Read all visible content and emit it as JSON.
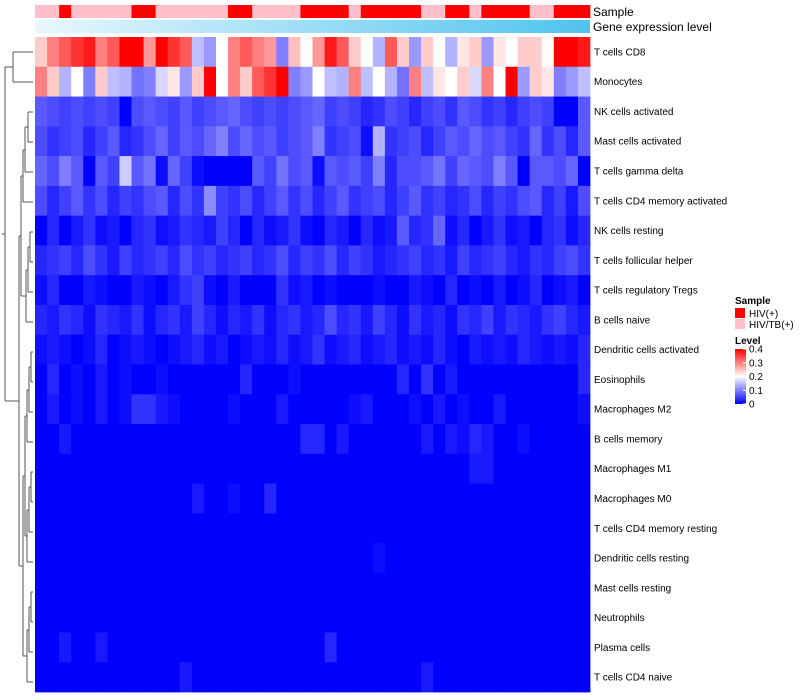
{
  "chart_data": {
    "type": "heatmap",
    "rows": [
      "T cells CD8",
      "Monocytes",
      "NK cells activated",
      "Mast cells activated",
      "T cells gamma delta",
      "T cells CD4 memory activated",
      "NK cells resting",
      "T cells follicular helper",
      "T cells regulatory  Tregs",
      "B cells naive",
      "Dendritic cells activated",
      "Eosinophils",
      "Macrophages M2",
      "B cells memory",
      "Macrophages M1",
      "Macrophages M0",
      "T cells CD4 memory resting",
      "Dendritic cells resting",
      "Mast cells resting",
      "Neutrophils",
      "Plasma cells",
      "T cells CD4 naive"
    ],
    "n_columns": 46,
    "values": [
      [
        0.24,
        0.3,
        0.33,
        0.36,
        0.38,
        0.3,
        0.33,
        0.4,
        0.4,
        0.28,
        0.4,
        0.36,
        0.33,
        0.15,
        0.12,
        0.2,
        0.3,
        0.33,
        0.3,
        0.28,
        0.1,
        0.25,
        0.2,
        0.28,
        0.38,
        0.33,
        0.24,
        0.2,
        0.14,
        0.33,
        0.24,
        0.12,
        0.24,
        0.2,
        0.14,
        0.22,
        0.24,
        0.12,
        0.22,
        0.2,
        0.24,
        0.24,
        0.2,
        0.4,
        0.4,
        0.38
      ],
      [
        0.3,
        0.24,
        0.14,
        0.2,
        0.1,
        0.24,
        0.15,
        0.14,
        0.09,
        0.1,
        0.17,
        0.22,
        0.12,
        0.24,
        0.4,
        0.2,
        0.3,
        0.24,
        0.33,
        0.36,
        0.4,
        0.1,
        0.12,
        0.2,
        0.15,
        0.14,
        0.3,
        0.15,
        0.2,
        0.14,
        0.09,
        0.3,
        0.15,
        0.22,
        0.2,
        0.24,
        0.17,
        0.3,
        0.2,
        0.4,
        0.12,
        0.24,
        0.22,
        0.1,
        0.12,
        0.15
      ],
      [
        0.07,
        0.06,
        0.05,
        0.06,
        0.05,
        0.06,
        0.05,
        0.0,
        0.06,
        0.07,
        0.06,
        0.05,
        0.07,
        0.05,
        0.06,
        0.07,
        0.08,
        0.06,
        0.05,
        0.06,
        0.05,
        0.06,
        0.07,
        0.08,
        0.05,
        0.06,
        0.05,
        0.03,
        0.04,
        0.06,
        0.05,
        0.03,
        0.05,
        0.06,
        0.04,
        0.07,
        0.06,
        0.04,
        0.05,
        0.03,
        0.05,
        0.06,
        0.05,
        0.0,
        0.0,
        0.07
      ],
      [
        0.06,
        0.04,
        0.05,
        0.06,
        0.03,
        0.05,
        0.07,
        0.03,
        0.04,
        0.06,
        0.08,
        0.05,
        0.07,
        0.06,
        0.08,
        0.1,
        0.06,
        0.08,
        0.06,
        0.07,
        0.05,
        0.06,
        0.07,
        0.1,
        0.04,
        0.05,
        0.06,
        0.01,
        0.14,
        0.04,
        0.05,
        0.06,
        0.03,
        0.05,
        0.07,
        0.06,
        0.08,
        0.06,
        0.07,
        0.05,
        0.04,
        0.08,
        0.04,
        0.06,
        0.03,
        0.07
      ],
      [
        0.08,
        0.06,
        0.1,
        0.07,
        0.0,
        0.07,
        0.05,
        0.16,
        0.07,
        0.09,
        0.01,
        0.08,
        0.05,
        0.01,
        0.0,
        0.0,
        0.0,
        0.0,
        0.07,
        0.05,
        0.09,
        0.06,
        0.07,
        0.01,
        0.07,
        0.06,
        0.07,
        0.05,
        0.1,
        0.03,
        0.06,
        0.06,
        0.07,
        0.09,
        0.05,
        0.08,
        0.07,
        0.06,
        0.1,
        0.07,
        0.0,
        0.07,
        0.07,
        0.06,
        0.08,
        0.0
      ],
      [
        0.06,
        0.03,
        0.05,
        0.07,
        0.04,
        0.06,
        0.03,
        0.05,
        0.04,
        0.06,
        0.07,
        0.03,
        0.06,
        0.04,
        0.11,
        0.05,
        0.04,
        0.06,
        0.03,
        0.05,
        0.07,
        0.04,
        0.06,
        0.03,
        0.05,
        0.07,
        0.04,
        0.05,
        0.06,
        0.03,
        0.05,
        0.07,
        0.04,
        0.05,
        0.03,
        0.04,
        0.06,
        0.03,
        0.05,
        0.04,
        0.06,
        0.07,
        0.03,
        0.05,
        0.02,
        0.06
      ],
      [
        0.0,
        0.03,
        0.0,
        0.02,
        0.04,
        0.01,
        0.02,
        0.0,
        0.03,
        0.04,
        0.01,
        0.02,
        0.04,
        0.03,
        0.02,
        0.05,
        0.03,
        0.0,
        0.03,
        0.01,
        0.02,
        0.04,
        0.01,
        0.0,
        0.03,
        0.02,
        0.0,
        0.03,
        0.01,
        0.02,
        0.07,
        0.03,
        0.04,
        0.08,
        0.01,
        0.03,
        0.0,
        0.02,
        0.04,
        0.01,
        0.02,
        0.0,
        0.03,
        0.04,
        0.01,
        0.03
      ],
      [
        0.03,
        0.04,
        0.05,
        0.03,
        0.06,
        0.04,
        0.02,
        0.05,
        0.03,
        0.04,
        0.05,
        0.03,
        0.06,
        0.04,
        0.05,
        0.03,
        0.04,
        0.05,
        0.03,
        0.04,
        0.06,
        0.03,
        0.05,
        0.04,
        0.06,
        0.03,
        0.05,
        0.04,
        0.02,
        0.03,
        0.04,
        0.05,
        0.03,
        0.04,
        0.02,
        0.05,
        0.03,
        0.04,
        0.05,
        0.03,
        0.02,
        0.04,
        0.03,
        0.05,
        0.06,
        0.04
      ],
      [
        0.01,
        0.03,
        0.0,
        0.0,
        0.02,
        0.01,
        0.0,
        0.0,
        0.02,
        0.01,
        0.0,
        0.02,
        0.04,
        0.05,
        0.01,
        0.0,
        0.02,
        0.0,
        0.0,
        0.0,
        0.04,
        0.01,
        0.02,
        0.0,
        0.01,
        0.0,
        0.0,
        0.0,
        0.01,
        0.0,
        0.0,
        0.02,
        0.01,
        0.0,
        0.03,
        0.0,
        0.01,
        0.0,
        0.02,
        0.0,
        0.01,
        0.03,
        0.0,
        0.01,
        0.02,
        0.0
      ],
      [
        0.03,
        0.02,
        0.04,
        0.03,
        0.01,
        0.04,
        0.03,
        0.02,
        0.04,
        0.01,
        0.03,
        0.04,
        0.02,
        0.05,
        0.03,
        0.01,
        0.03,
        0.02,
        0.04,
        0.01,
        0.03,
        0.04,
        0.02,
        0.03,
        0.06,
        0.03,
        0.04,
        0.02,
        0.05,
        0.03,
        0.01,
        0.04,
        0.02,
        0.03,
        0.01,
        0.04,
        0.03,
        0.05,
        0.02,
        0.04,
        0.03,
        0.02,
        0.04,
        0.05,
        0.03,
        0.02
      ],
      [
        0.01,
        0.02,
        0.01,
        0.0,
        0.01,
        0.03,
        0.0,
        0.01,
        0.02,
        0.01,
        0.0,
        0.01,
        0.02,
        0.03,
        0.01,
        0.02,
        0.0,
        0.01,
        0.02,
        0.01,
        0.03,
        0.01,
        0.02,
        0.04,
        0.01,
        0.02,
        0.03,
        0.01,
        0.02,
        0.03,
        0.01,
        0.02,
        0.01,
        0.03,
        0.01,
        0.0,
        0.02,
        0.01,
        0.02,
        0.01,
        0.03,
        0.02,
        0.01,
        0.02,
        0.01,
        0.03
      ],
      [
        0.0,
        0.03,
        0.0,
        0.01,
        0.0,
        0.02,
        0.0,
        0.01,
        0.0,
        0.0,
        0.01,
        0.0,
        0.0,
        0.0,
        0.0,
        0.0,
        0.0,
        0.03,
        0.0,
        0.0,
        0.0,
        0.01,
        0.0,
        0.0,
        0.0,
        0.0,
        0.0,
        0.0,
        0.0,
        0.0,
        0.03,
        0.0,
        0.04,
        0.0,
        0.02,
        0.0,
        0.0,
        0.0,
        0.0,
        0.0,
        0.0,
        0.0,
        0.0,
        0.0,
        0.0,
        0.03
      ],
      [
        0.0,
        0.02,
        0.0,
        0.01,
        0.0,
        0.02,
        0.0,
        0.01,
        0.04,
        0.04,
        0.02,
        0.01,
        0.0,
        0.0,
        0.0,
        0.0,
        0.01,
        0.0,
        0.0,
        0.0,
        0.02,
        0.0,
        0.0,
        0.0,
        0.0,
        0.0,
        0.01,
        0.02,
        0.0,
        0.0,
        0.0,
        0.01,
        0.0,
        0.02,
        0.0,
        0.01,
        0.0,
        0.0,
        0.02,
        0.0,
        0.0,
        0.0,
        0.0,
        0.0,
        0.0,
        0.01
      ],
      [
        0.0,
        0.0,
        0.02,
        0.0,
        0.0,
        0.0,
        0.0,
        0.0,
        0.0,
        0.0,
        0.0,
        0.0,
        0.0,
        0.0,
        0.0,
        0.0,
        0.0,
        0.0,
        0.0,
        0.0,
        0.0,
        0.0,
        0.03,
        0.03,
        0.0,
        0.02,
        0.0,
        0.0,
        0.0,
        0.0,
        0.0,
        0.0,
        0.02,
        0.0,
        0.02,
        0.01,
        0.03,
        0.02,
        0.0,
        0.0,
        0.01,
        0.0,
        0.0,
        0.0,
        0.0,
        0.0
      ],
      [
        0.0,
        0.0,
        0.0,
        0.0,
        0.0,
        0.0,
        0.0,
        0.0,
        0.0,
        0.0,
        0.0,
        0.0,
        0.0,
        0.0,
        0.0,
        0.0,
        0.0,
        0.0,
        0.0,
        0.0,
        0.0,
        0.0,
        0.0,
        0.0,
        0.0,
        0.0,
        0.0,
        0.0,
        0.0,
        0.0,
        0.0,
        0.0,
        0.0,
        0.0,
        0.0,
        0.0,
        0.02,
        0.02,
        0.0,
        0.0,
        0.0,
        0.0,
        0.0,
        0.0,
        0.0,
        0.0
      ],
      [
        0.0,
        0.0,
        0.0,
        0.0,
        0.0,
        0.0,
        0.0,
        0.0,
        0.0,
        0.0,
        0.0,
        0.0,
        0.0,
        0.02,
        0.0,
        0.0,
        0.01,
        0.0,
        0.0,
        0.03,
        0.0,
        0.0,
        0.0,
        0.0,
        0.0,
        0.0,
        0.0,
        0.0,
        0.0,
        0.0,
        0.0,
        0.0,
        0.0,
        0.0,
        0.0,
        0.0,
        0.0,
        0.0,
        0.0,
        0.0,
        0.0,
        0.0,
        0.0,
        0.0,
        0.0,
        0.0
      ],
      [
        0.0,
        0.0,
        0.0,
        0.0,
        0.0,
        0.0,
        0.0,
        0.0,
        0.0,
        0.0,
        0.0,
        0.0,
        0.0,
        0.0,
        0.0,
        0.0,
        0.0,
        0.0,
        0.0,
        0.0,
        0.0,
        0.0,
        0.0,
        0.0,
        0.0,
        0.0,
        0.0,
        0.0,
        0.0,
        0.0,
        0.0,
        0.0,
        0.0,
        0.0,
        0.0,
        0.0,
        0.0,
        0.0,
        0.0,
        0.0,
        0.0,
        0.0,
        0.0,
        0.0,
        0.0,
        0.0
      ],
      [
        0.0,
        0.0,
        0.0,
        0.0,
        0.0,
        0.0,
        0.0,
        0.0,
        0.0,
        0.0,
        0.0,
        0.0,
        0.0,
        0.0,
        0.0,
        0.0,
        0.0,
        0.0,
        0.0,
        0.0,
        0.0,
        0.0,
        0.0,
        0.0,
        0.0,
        0.0,
        0.0,
        0.0,
        0.01,
        0.0,
        0.0,
        0.0,
        0.0,
        0.0,
        0.0,
        0.0,
        0.0,
        0.0,
        0.0,
        0.0,
        0.0,
        0.0,
        0.0,
        0.0,
        0.0,
        0.0
      ],
      [
        0.0,
        0.0,
        0.0,
        0.0,
        0.0,
        0.0,
        0.0,
        0.0,
        0.0,
        0.0,
        0.0,
        0.0,
        0.0,
        0.0,
        0.0,
        0.0,
        0.0,
        0.0,
        0.0,
        0.0,
        0.0,
        0.0,
        0.0,
        0.0,
        0.0,
        0.0,
        0.0,
        0.0,
        0.0,
        0.0,
        0.0,
        0.0,
        0.0,
        0.0,
        0.0,
        0.0,
        0.0,
        0.0,
        0.0,
        0.0,
        0.0,
        0.0,
        0.0,
        0.0,
        0.0,
        0.0
      ],
      [
        0.0,
        0.0,
        0.0,
        0.0,
        0.0,
        0.0,
        0.0,
        0.0,
        0.0,
        0.0,
        0.0,
        0.0,
        0.0,
        0.0,
        0.0,
        0.0,
        0.0,
        0.0,
        0.0,
        0.0,
        0.0,
        0.0,
        0.0,
        0.0,
        0.0,
        0.0,
        0.0,
        0.0,
        0.0,
        0.0,
        0.0,
        0.0,
        0.0,
        0.0,
        0.0,
        0.0,
        0.0,
        0.0,
        0.0,
        0.0,
        0.0,
        0.0,
        0.0,
        0.0,
        0.0,
        0.0
      ],
      [
        0.0,
        0.0,
        0.02,
        0.0,
        0.0,
        0.02,
        0.0,
        0.0,
        0.0,
        0.0,
        0.0,
        0.0,
        0.0,
        0.0,
        0.0,
        0.0,
        0.0,
        0.0,
        0.0,
        0.0,
        0.0,
        0.0,
        0.0,
        0.0,
        0.03,
        0.0,
        0.0,
        0.0,
        0.0,
        0.0,
        0.0,
        0.0,
        0.0,
        0.0,
        0.0,
        0.0,
        0.0,
        0.0,
        0.0,
        0.0,
        0.0,
        0.0,
        0.0,
        0.0,
        0.0,
        0.0
      ],
      [
        0.0,
        0.0,
        0.0,
        0.0,
        0.0,
        0.0,
        0.0,
        0.0,
        0.0,
        0.0,
        0.0,
        0.0,
        0.02,
        0.0,
        0.0,
        0.0,
        0.0,
        0.0,
        0.0,
        0.0,
        0.0,
        0.0,
        0.0,
        0.0,
        0.0,
        0.0,
        0.0,
        0.0,
        0.0,
        0.0,
        0.0,
        0.0,
        0.02,
        0.0,
        0.0,
        0.0,
        0.0,
        0.0,
        0.0,
        0.0,
        0.0,
        0.0,
        0.0,
        0.0,
        0.0,
        0.0
      ]
    ],
    "sample_annotation": {
      "label": "Sample",
      "column_groups": [
        "HIV/TB(+)",
        "HIV/TB(+)",
        "HIV(+)",
        "HIV/TB(+)",
        "HIV/TB(+)",
        "HIV/TB(+)",
        "HIV/TB(+)",
        "HIV/TB(+)",
        "HIV(+)",
        "HIV(+)",
        "HIV/TB(+)",
        "HIV/TB(+)",
        "HIV/TB(+)",
        "HIV/TB(+)",
        "HIV/TB(+)",
        "HIV/TB(+)",
        "HIV(+)",
        "HIV(+)",
        "HIV/TB(+)",
        "HIV/TB(+)",
        "HIV/TB(+)",
        "HIV/TB(+)",
        "HIV(+)",
        "HIV(+)",
        "HIV(+)",
        "HIV(+)",
        "HIV/TB(+)",
        "HIV(+)",
        "HIV(+)",
        "HIV(+)",
        "HIV(+)",
        "HIV(+)",
        "HIV/TB(+)",
        "HIV/TB(+)",
        "HIV(+)",
        "HIV(+)",
        "HIV/TB(+)",
        "HIV(+)",
        "HIV(+)",
        "HIV(+)",
        "HIV(+)",
        "HIV/TB(+)",
        "HIV/TB(+)",
        "HIV(+)",
        "HIV(+)",
        "HIV(+)"
      ]
    },
    "expression_annotation": {
      "label": "Gene expression level",
      "gradient_from": "#e9f7fc",
      "gradient_to": "#4fc3ef"
    },
    "legend_sample": {
      "title": "Sample",
      "entries": [
        {
          "label": "HIV(+)",
          "color": "#ff0000"
        },
        {
          "label": "HIV/TB(+)",
          "color": "#ffc0cb"
        }
      ]
    },
    "legend_level": {
      "title": "Level",
      "ticks": [
        "0.4",
        "0.3",
        "0.2",
        "0.1",
        "0"
      ],
      "tick_values": [
        0.4,
        0.3,
        0.2,
        0.1,
        0
      ],
      "range": [
        0,
        0.4
      ]
    },
    "colors": {
      "low": "#0000ff",
      "mid": "#ffffff",
      "high": "#ff0000",
      "mid_value": 0.2
    }
  }
}
